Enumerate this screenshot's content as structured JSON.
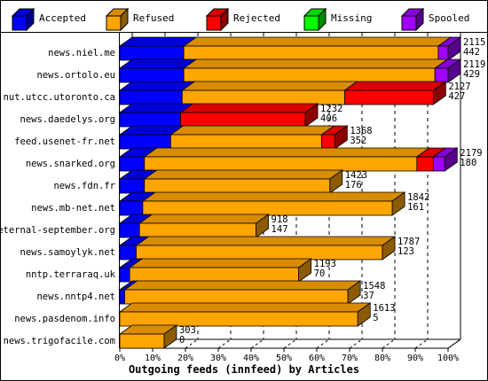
{
  "chart_data": {
    "type": "bar",
    "orientation": "horizontal",
    "stacked": true,
    "three_d": true,
    "title": "",
    "xlabel": "Outgoing feeds (innfeed) by Articles",
    "ylabel": "",
    "xlim": [
      0,
      100
    ],
    "x_ticks": [
      "0%",
      "10%",
      "20%",
      "30%",
      "40%",
      "50%",
      "60%",
      "70%",
      "80%",
      "90%",
      "100%"
    ],
    "grid": "vertical dashed",
    "legend_position": "top",
    "series": [
      {
        "name": "Accepted",
        "color": "#0000ff"
      },
      {
        "name": "Refused",
        "color": "#ffa500"
      },
      {
        "name": "Rejected",
        "color": "#ff0000"
      },
      {
        "name": "Missing",
        "color": "#00ff00"
      },
      {
        "name": "Spooled",
        "color": "#a000ff"
      }
    ],
    "rows": [
      {
        "name": "news.niel.me",
        "total": "2115",
        "second": "442",
        "pct": [
          19.5,
          77.5,
          0,
          0,
          3
        ]
      },
      {
        "name": "news.ortolo.eu",
        "total": "2119",
        "second": "429",
        "pct": [
          19.5,
          76.5,
          0,
          0,
          4
        ]
      },
      {
        "name": "nut.utcc.utoronto.ca",
        "total": "2127",
        "second": "427",
        "pct": [
          19,
          49.5,
          27,
          0,
          0
        ]
      },
      {
        "name": "news.daedelys.org",
        "total": "1232",
        "second": "406",
        "pct": [
          18.5,
          0,
          38,
          0,
          0
        ]
      },
      {
        "name": "feed.usenet-fr.net",
        "total": "1368",
        "second": "352",
        "pct": [
          15.5,
          46,
          4,
          0,
          0
        ]
      },
      {
        "name": "news.snarked.org",
        "total": "2179",
        "second": "180",
        "pct": [
          7.5,
          83,
          5,
          0,
          3.5
        ]
      },
      {
        "name": "news.fdn.fr",
        "total": "1423",
        "second": "176",
        "pct": [
          7.5,
          56.5,
          0,
          0,
          0
        ]
      },
      {
        "name": "news.mb-net.net",
        "total": "1842",
        "second": "161",
        "pct": [
          7,
          76,
          0,
          0,
          0
        ]
      },
      {
        "name": "eternal-september.org",
        "total": "918",
        "second": "147",
        "pct": [
          6,
          35.5,
          0,
          0,
          0
        ]
      },
      {
        "name": "news.samoylyk.net",
        "total": "1787",
        "second": "123",
        "pct": [
          5,
          75,
          0,
          0,
          0
        ]
      },
      {
        "name": "nntp.terraraq.uk",
        "total": "1193",
        "second": "70",
        "pct": [
          3,
          51.5,
          0,
          0,
          0
        ]
      },
      {
        "name": "news.nntp4.net",
        "total": "1548",
        "second": "37",
        "pct": [
          1.5,
          68,
          0,
          0,
          0
        ]
      },
      {
        "name": "news.pasdenom.info",
        "total": "1613",
        "second": "5",
        "pct": [
          0,
          72.5,
          0,
          0,
          0
        ]
      },
      {
        "name": "news.trigofacile.com",
        "total": "303",
        "second": "0",
        "pct": [
          0,
          13.5,
          0,
          0,
          0
        ]
      }
    ]
  }
}
